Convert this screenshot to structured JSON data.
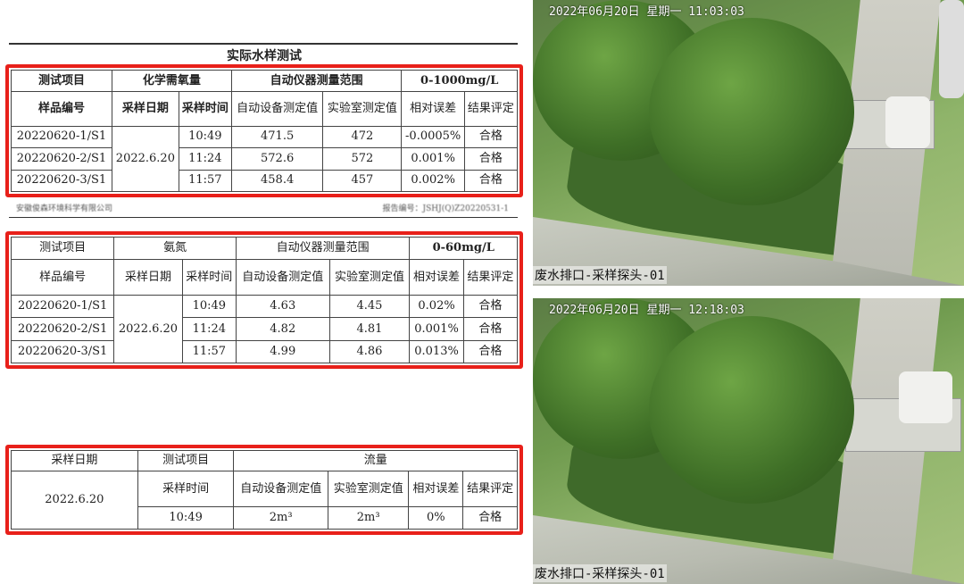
{
  "document": {
    "title": "实际水样测试",
    "footer_left": "安徽俊森环境科学有限公司",
    "footer_right": "报告编号：JSHJ(Q)Z20220531-1",
    "highlight_color": "#e8201a",
    "table_headers": {
      "item": "测试项目",
      "range_label": "自动仪器测量范围",
      "sample_no": "样品编号",
      "date": "采样日期",
      "time": "采样时间",
      "auto": "自动设备测定值",
      "lab": "实验室测定值",
      "err": "相对误差",
      "result": "结果评定"
    },
    "cod": {
      "name": "化学需氧量",
      "range": "0-1000mg/L",
      "date": "2022.6.20",
      "rows": [
        {
          "id": "20220620-1/S1",
          "time": "10:49",
          "auto": "471.5",
          "lab": "472",
          "err": "-0.0005%",
          "result": "合格"
        },
        {
          "id": "20220620-2/S1",
          "time": "11:24",
          "auto": "572.6",
          "lab": "572",
          "err": "0.001%",
          "result": "合格"
        },
        {
          "id": "20220620-3/S1",
          "time": "11:57",
          "auto": "458.4",
          "lab": "457",
          "err": "0.002%",
          "result": "合格"
        }
      ]
    },
    "nh3": {
      "name": "氨氮",
      "range": "0-60mg/L",
      "date": "2022.6.20",
      "rows": [
        {
          "id": "20220620-1/S1",
          "time": "10:49",
          "auto": "4.63",
          "lab": "4.45",
          "err": "0.02%",
          "result": "合格"
        },
        {
          "id": "20220620-2/S1",
          "time": "11:24",
          "auto": "4.82",
          "lab": "4.81",
          "err": "0.001%",
          "result": "合格"
        },
        {
          "id": "20220620-3/S1",
          "time": "11:57",
          "auto": "4.99",
          "lab": "4.86",
          "err": "0.013%",
          "result": "合格"
        }
      ]
    },
    "flow": {
      "name": "流量",
      "date": "2022.6.20",
      "time": "10:49",
      "auto": "2m³",
      "lab": "2m³",
      "err": "0%",
      "result": "合格"
    }
  },
  "cameras": [
    {
      "timestamp": "2022年06月20日 星期一 11:03:03",
      "caption": "废水排口-采样探头-01"
    },
    {
      "timestamp": "2022年06月20日 星期一 12:18:03",
      "caption": "废水排口-采样探头-01"
    }
  ]
}
